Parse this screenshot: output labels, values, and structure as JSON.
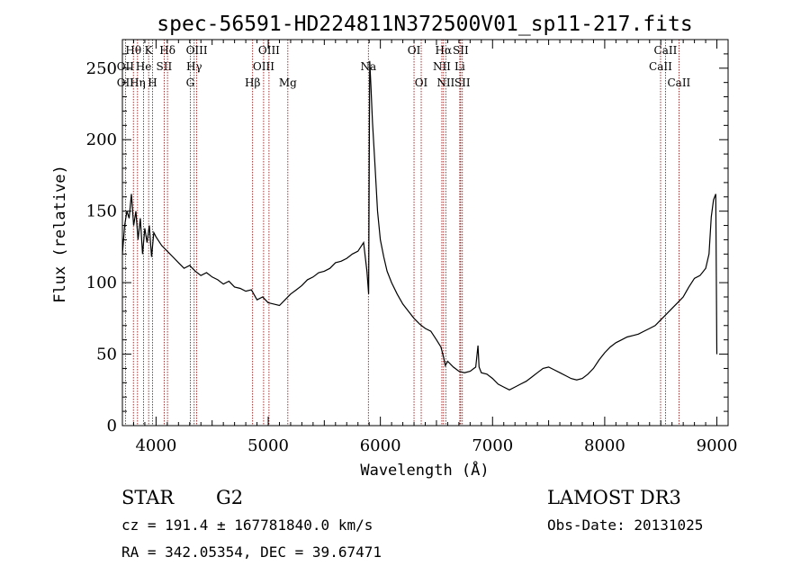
{
  "chart_data": {
    "type": "line",
    "title": "spec-56591-HD224811N372500V01_sp11-217.fits",
    "xlabel": "Wavelength (Å)",
    "ylabel": "Flux (relative)",
    "xlim": [
      3700,
      9100
    ],
    "ylim": [
      0,
      270
    ],
    "xticks": [
      4000,
      5000,
      6000,
      7000,
      8000,
      9000
    ],
    "yticks": [
      0,
      50,
      100,
      150,
      200,
      250
    ],
    "grid": false,
    "series": [
      {
        "x": [
          3700,
          3720,
          3740,
          3760,
          3780,
          3800,
          3820,
          3840,
          3860,
          3880,
          3900,
          3920,
          3940,
          3960,
          3980,
          4000,
          4050,
          4100,
          4150,
          4200,
          4250,
          4300,
          4350,
          4400,
          4450,
          4500,
          4550,
          4600,
          4650,
          4700,
          4750,
          4800,
          4850,
          4900,
          4950,
          5000,
          5050,
          5100,
          5150,
          5200,
          5250,
          5300,
          5350,
          5400,
          5450,
          5500,
          5550,
          5600,
          5650,
          5700,
          5750,
          5800,
          5850,
          5880,
          5895,
          5905,
          5915,
          5930,
          5950,
          5975,
          6000,
          6030,
          6060,
          6100,
          6150,
          6200,
          6250,
          6300,
          6350,
          6400,
          6450,
          6500,
          6540,
          6563,
          6580,
          6600,
          6650,
          6700,
          6750,
          6800,
          6850,
          6870,
          6880,
          6900,
          6950,
          7000,
          7050,
          7100,
          7150,
          7200,
          7250,
          7300,
          7350,
          7400,
          7450,
          7500,
          7550,
          7600,
          7650,
          7700,
          7750,
          7800,
          7850,
          7900,
          7950,
          8000,
          8050,
          8100,
          8150,
          8200,
          8250,
          8300,
          8350,
          8400,
          8450,
          8500,
          8550,
          8600,
          8650,
          8700,
          8750,
          8800,
          8850,
          8900,
          8930,
          8950,
          8970,
          8990,
          9000
        ],
        "y": [
          120,
          140,
          150,
          145,
          162,
          140,
          150,
          130,
          145,
          120,
          138,
          128,
          140,
          118,
          135,
          132,
          126,
          122,
          118,
          114,
          110,
          112,
          108,
          105,
          107,
          104,
          102,
          99,
          101,
          97,
          96,
          94,
          95,
          88,
          90,
          86,
          85,
          84,
          88,
          92,
          95,
          98,
          102,
          104,
          107,
          108,
          110,
          114,
          115,
          117,
          120,
          122,
          128,
          108,
          92,
          255,
          238,
          212,
          185,
          150,
          130,
          118,
          108,
          100,
          92,
          85,
          80,
          75,
          71,
          68,
          66,
          60,
          55,
          48,
          42,
          45,
          41,
          38,
          37,
          38,
          41,
          56,
          41,
          37,
          36,
          33,
          29,
          27,
          25,
          27,
          29,
          31,
          34,
          37,
          40,
          41,
          39,
          37,
          35,
          33,
          32,
          33,
          36,
          40,
          46,
          51,
          55,
          58,
          60,
          62,
          63,
          64,
          66,
          68,
          70,
          74,
          78,
          82,
          86,
          90,
          97,
          103,
          105,
          110,
          120,
          146,
          158,
          162,
          50
        ]
      }
    ],
    "lines": [
      {
        "label": "Hθ",
        "x": 3798,
        "row": 0,
        "color": "#8b0000"
      },
      {
        "label": "OII",
        "x": 3727,
        "row": 1,
        "color": "#8b0000"
      },
      {
        "label": "OII",
        "x": 3727,
        "row": 2,
        "color": "#8b0000"
      },
      {
        "label": "Hη",
        "x": 3835,
        "row": 2,
        "color": "#8b0000"
      },
      {
        "label": "He",
        "x": 3889,
        "row": 1,
        "color": "#8b0000"
      },
      {
        "label": "K",
        "x": 3934,
        "row": 0,
        "color": "#8b0000"
      },
      {
        "label": "H",
        "x": 3969,
        "row": 2,
        "color": "#8b0000"
      },
      {
        "label": "Hδ",
        "x": 4102,
        "row": 0,
        "color": "#8b0000"
      },
      {
        "label": "SII",
        "x": 4072,
        "row": 1,
        "color": "#8b0000"
      },
      {
        "label": "OIII",
        "x": 4363,
        "row": 0,
        "color": "#8b0000"
      },
      {
        "label": "Hγ",
        "x": 4340,
        "row": 1,
        "color": "#8b0000"
      },
      {
        "label": "G",
        "x": 4305,
        "row": 2,
        "color": "#8b0000"
      },
      {
        "label": "Hβ",
        "x": 4861,
        "row": 2,
        "color": "#8b0000"
      },
      {
        "label": "OIII",
        "x": 5007,
        "row": 0,
        "color": "#8b0000"
      },
      {
        "label": "OIII",
        "x": 4959,
        "row": 1,
        "color": "#8b0000"
      },
      {
        "label": "Mg",
        "x": 5175,
        "row": 2,
        "color": "#8b0000"
      },
      {
        "label": "Na",
        "x": 5893,
        "row": 1,
        "color": "#8b0000"
      },
      {
        "label": "OI",
        "x": 6300,
        "row": 0,
        "color": "#8b0000"
      },
      {
        "label": "OI",
        "x": 6364,
        "row": 2,
        "color": "#8b0000"
      },
      {
        "label": "Hα",
        "x": 6563,
        "row": 0,
        "color": "#8b0000"
      },
      {
        "label": "SII",
        "x": 6716,
        "row": 0,
        "color": "#8b0000"
      },
      {
        "label": "NII",
        "x": 6548,
        "row": 1,
        "color": "#8b0000"
      },
      {
        "label": "Li",
        "x": 6708,
        "row": 1,
        "color": "#8b0000"
      },
      {
        "label": "NII",
        "x": 6583,
        "row": 2,
        "color": "#8b0000"
      },
      {
        "label": "SII",
        "x": 6731,
        "row": 2,
        "color": "#8b0000"
      },
      {
        "label": "CaII",
        "x": 8542,
        "row": 0,
        "color": "#8b0000"
      },
      {
        "label": "CaII",
        "x": 8498,
        "row": 1,
        "color": "#8b0000"
      },
      {
        "label": "CaII",
        "x": 8662,
        "row": 2,
        "color": "#8b0000"
      }
    ]
  },
  "info": {
    "object_type": "STAR",
    "subclass": "G2",
    "survey": "LAMOST DR3",
    "cz": "cz = 191.4 ± 167781840.0 km/s",
    "obs_date": "Obs-Date: 20131025",
    "coords": "RA = 342.05354, DEC =  39.67471"
  }
}
